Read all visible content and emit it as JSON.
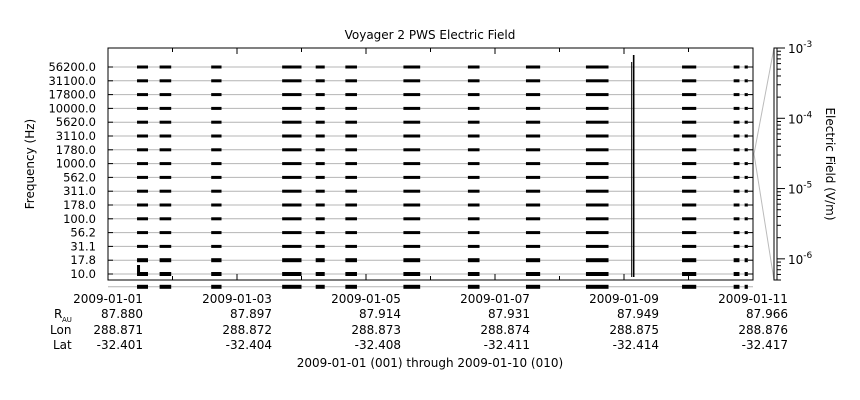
{
  "chart_data": {
    "type": "line",
    "title": "Voyager 2 PWS Electric Field",
    "ylabel": "Frequency (Hz)",
    "right_axis_label": "Electric Field (V/m)",
    "time_range_label": "2009-01-01 (001) through 2009-01-10 (010)",
    "x_range_days": [
      0,
      10
    ],
    "frequency_channels": [
      "56200.0",
      "31100.0",
      "17800.0",
      "10000.0",
      "5620.0",
      "3110.0",
      "1780.0",
      "1000.0",
      "562.0",
      "311.0",
      "178.0",
      "100.0",
      "56.2",
      "31.1",
      "17.8",
      "10.0"
    ],
    "right_axis": {
      "scale": "log",
      "range": [
        5e-07,
        0.001
      ],
      "ticks": [
        {
          "value": 0.001,
          "mantissa": "10",
          "exp": "-3"
        },
        {
          "value": 0.0001,
          "mantissa": "10",
          "exp": "-4"
        },
        {
          "value": 1e-05,
          "mantissa": "10",
          "exp": "-5"
        },
        {
          "value": 1e-06,
          "mantissa": "10",
          "exp": "-6"
        }
      ]
    },
    "x_tick_labels": [
      {
        "day": 0,
        "date": "2009-01-01",
        "r_au": "87.880",
        "lon": "288.871",
        "lat": "-32.401"
      },
      {
        "day": 2,
        "date": "2009-01-03",
        "r_au": "87.897",
        "lon": "288.872",
        "lat": "-32.404"
      },
      {
        "day": 4,
        "date": "2009-01-05",
        "r_au": "87.914",
        "lon": "288.873",
        "lat": "-32.408"
      },
      {
        "day": 6,
        "date": "2009-01-07",
        "r_au": "87.931",
        "lon": "288.874",
        "lat": "-32.411"
      },
      {
        "day": 8,
        "date": "2009-01-09",
        "r_au": "87.949",
        "lon": "288.875",
        "lat": "-32.414"
      },
      {
        "day": 10,
        "date": "2009-01-11",
        "r_au": "87.966",
        "lon": "288.876",
        "lat": "-32.417"
      }
    ],
    "ephemeris_row_labels": {
      "r_main": "R",
      "r_sub": "AU",
      "lon": "Lon",
      "lat": "Lat"
    },
    "data_segments_days": [
      [
        0.45,
        0.62
      ],
      [
        0.8,
        0.98
      ],
      [
        1.6,
        1.76
      ],
      [
        2.7,
        3.0
      ],
      [
        3.22,
        3.36
      ],
      [
        3.68,
        3.86
      ],
      [
        4.58,
        4.84
      ],
      [
        5.58,
        5.76
      ],
      [
        6.48,
        6.7
      ],
      [
        7.41,
        7.76
      ],
      [
        8.9,
        9.12
      ],
      [
        9.7,
        9.79
      ],
      [
        9.87,
        9.92
      ]
    ],
    "spike_day": 8.15
  }
}
